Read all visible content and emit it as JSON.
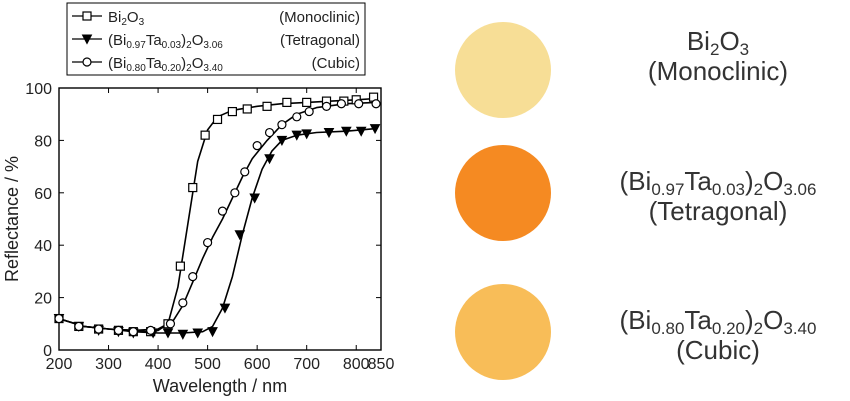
{
  "chart_data": {
    "type": "scatter",
    "xlabel": "Wavelength / nm",
    "ylabel": "Reflectance / %",
    "xlim": [
      200,
      850
    ],
    "ylim": [
      0,
      100
    ],
    "xticks": [
      200,
      300,
      400,
      500,
      600,
      700,
      800,
      850
    ],
    "yticks": [
      0,
      20,
      40,
      60,
      80,
      100
    ],
    "series": [
      {
        "name": "Bi2O3",
        "legend_parts": [
          [
            "Bi",
            ""
          ],
          [
            "2",
            "sub"
          ],
          [
            "O",
            ""
          ],
          [
            "3",
            "sub"
          ]
        ],
        "phase": "(Monoclinic)",
        "marker": "square-open",
        "curve": [
          [
            200,
            12
          ],
          [
            250,
            9
          ],
          [
            300,
            8
          ],
          [
            350,
            7.5
          ],
          [
            380,
            7
          ],
          [
            400,
            7.5
          ],
          [
            420,
            10
          ],
          [
            440,
            24
          ],
          [
            460,
            48
          ],
          [
            480,
            72
          ],
          [
            500,
            84
          ],
          [
            520,
            89
          ],
          [
            550,
            91.5
          ],
          [
            600,
            93
          ],
          [
            650,
            94
          ],
          [
            700,
            94.5
          ],
          [
            750,
            95
          ],
          [
            800,
            95.5
          ],
          [
            840,
            96
          ]
        ],
        "points": [
          [
            200,
            12
          ],
          [
            240,
            9
          ],
          [
            280,
            8
          ],
          [
            320,
            7.5
          ],
          [
            350,
            7
          ],
          [
            385,
            7
          ],
          [
            420,
            10
          ],
          [
            445,
            32
          ],
          [
            470,
            62
          ],
          [
            495,
            82
          ],
          [
            520,
            88
          ],
          [
            550,
            91
          ],
          [
            580,
            92
          ],
          [
            620,
            93
          ],
          [
            660,
            94.5
          ],
          [
            700,
            94.5
          ],
          [
            740,
            95
          ],
          [
            775,
            95
          ],
          [
            800,
            95.5
          ],
          [
            835,
            96.5
          ]
        ]
      },
      {
        "name": "(Bi0.97Ta0.03)2O3.06",
        "legend_parts": [
          [
            "(Bi",
            ""
          ],
          [
            "0.97",
            "sub"
          ],
          [
            "Ta",
            ""
          ],
          [
            "0.03",
            "sub"
          ],
          [
            ")",
            ""
          ],
          [
            "2",
            "sub"
          ],
          [
            "O",
            ""
          ],
          [
            "3.06",
            "sub"
          ]
        ],
        "phase": "(Tetragonal)",
        "marker": "triangle-down-filled",
        "curve": [
          [
            200,
            12
          ],
          [
            250,
            9
          ],
          [
            300,
            8
          ],
          [
            350,
            7
          ],
          [
            400,
            6.5
          ],
          [
            450,
            6.5
          ],
          [
            490,
            7
          ],
          [
            510,
            9
          ],
          [
            530,
            16
          ],
          [
            550,
            28
          ],
          [
            570,
            44
          ],
          [
            590,
            58
          ],
          [
            610,
            69
          ],
          [
            630,
            76
          ],
          [
            650,
            80
          ],
          [
            680,
            82
          ],
          [
            720,
            83
          ],
          [
            780,
            83.5
          ],
          [
            840,
            84.5
          ]
        ],
        "points": [
          [
            200,
            12
          ],
          [
            240,
            9
          ],
          [
            280,
            7.5
          ],
          [
            320,
            7
          ],
          [
            350,
            6.5
          ],
          [
            390,
            6.5
          ],
          [
            420,
            6.5
          ],
          [
            450,
            6
          ],
          [
            480,
            6.5
          ],
          [
            510,
            7
          ],
          [
            535,
            16
          ],
          [
            565,
            44
          ],
          [
            595,
            58
          ],
          [
            625,
            73
          ],
          [
            650,
            80
          ],
          [
            680,
            82
          ],
          [
            700,
            82.5
          ],
          [
            745,
            83
          ],
          [
            780,
            83.5
          ],
          [
            810,
            83.5
          ],
          [
            838,
            84.5
          ]
        ]
      },
      {
        "name": "(Bi0.80Ta0.20)2O3.40",
        "legend_parts": [
          [
            "(Bi",
            ""
          ],
          [
            "0.80",
            "sub"
          ],
          [
            "Ta",
            ""
          ],
          [
            "0.20",
            "sub"
          ],
          [
            ")",
            ""
          ],
          [
            "2",
            "sub"
          ],
          [
            "O",
            ""
          ],
          [
            "3.40",
            "sub"
          ]
        ],
        "phase": "(Cubic)",
        "marker": "circle-open",
        "curve": [
          [
            200,
            12
          ],
          [
            250,
            9
          ],
          [
            300,
            8
          ],
          [
            350,
            7.5
          ],
          [
            400,
            8
          ],
          [
            430,
            11
          ],
          [
            450,
            17
          ],
          [
            470,
            26
          ],
          [
            490,
            35
          ],
          [
            510,
            43
          ],
          [
            530,
            50
          ],
          [
            550,
            58
          ],
          [
            570,
            66
          ],
          [
            590,
            73
          ],
          [
            620,
            80
          ],
          [
            650,
            86
          ],
          [
            680,
            90
          ],
          [
            720,
            92.5
          ],
          [
            780,
            94
          ],
          [
            840,
            94.5
          ]
        ],
        "points": [
          [
            200,
            12
          ],
          [
            240,
            9
          ],
          [
            280,
            8
          ],
          [
            320,
            7.5
          ],
          [
            350,
            7
          ],
          [
            385,
            7.5
          ],
          [
            425,
            10
          ],
          [
            450,
            18
          ],
          [
            470,
            28
          ],
          [
            500,
            41
          ],
          [
            530,
            53
          ],
          [
            555,
            60
          ],
          [
            575,
            68
          ],
          [
            600,
            78
          ],
          [
            625,
            83
          ],
          [
            650,
            86
          ],
          [
            680,
            89
          ],
          [
            705,
            91
          ],
          [
            740,
            93
          ],
          [
            770,
            94
          ],
          [
            805,
            94
          ],
          [
            840,
            94
          ]
        ]
      }
    ]
  },
  "samples": [
    {
      "label_line1": [
        [
          "Bi",
          ""
        ],
        [
          "2",
          "sub"
        ],
        [
          "O",
          ""
        ],
        [
          "3",
          "sub"
        ]
      ],
      "label_line2": "(Monoclinic)",
      "color": "#f7de96"
    },
    {
      "label_line1": [
        [
          "(Bi",
          ""
        ],
        [
          "0.97",
          "sub"
        ],
        [
          "Ta",
          ""
        ],
        [
          "0.03",
          "sub"
        ],
        [
          ")",
          ""
        ],
        [
          "2",
          "sub"
        ],
        [
          "O",
          ""
        ],
        [
          "3.06",
          "sub"
        ]
      ],
      "label_line2": "(Tetragonal)",
      "color": "#f58a22"
    },
    {
      "label_line1": [
        [
          "(Bi",
          ""
        ],
        [
          "0.80",
          "sub"
        ],
        [
          "Ta",
          ""
        ],
        [
          "0.20",
          "sub"
        ],
        [
          ")",
          ""
        ],
        [
          "2",
          "sub"
        ],
        [
          "O",
          ""
        ],
        [
          "3.40",
          "sub"
        ]
      ],
      "label_line2": "(Cubic)",
      "color": "#f8bd58"
    }
  ]
}
